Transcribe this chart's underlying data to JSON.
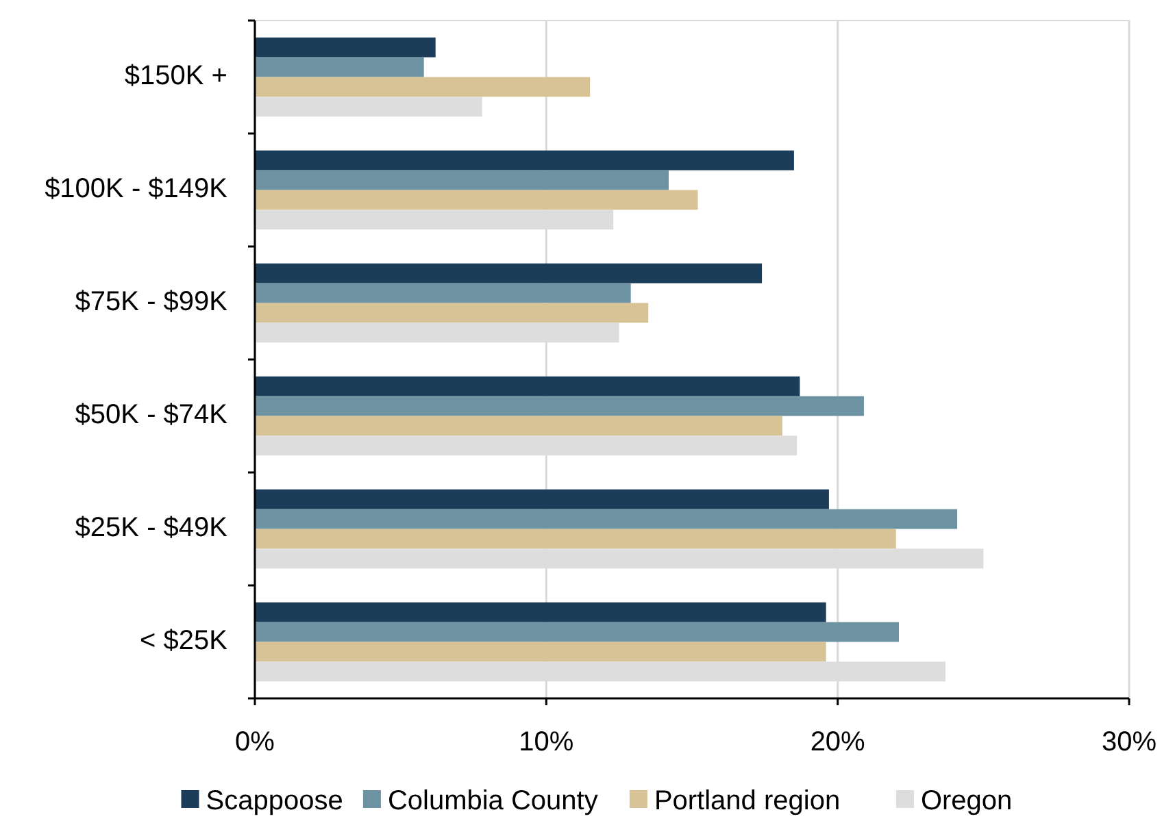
{
  "chart_data": {
    "type": "bar",
    "orientation": "horizontal",
    "categories": [
      "$150K +",
      "$100K - $149K",
      "$75K - $99K",
      "$50K - $74K",
      "$25K - $49K",
      "< $25K"
    ],
    "series": [
      {
        "name": "Scappoose",
        "color": "#1c3d5a",
        "values": [
          6.2,
          18.5,
          17.4,
          18.7,
          19.7,
          19.6
        ]
      },
      {
        "name": "Columbia County",
        "color": "#6d93a3",
        "values": [
          5.8,
          14.2,
          12.9,
          20.9,
          24.1,
          22.1
        ]
      },
      {
        "name": "Portland region",
        "color": "#d8c396",
        "values": [
          11.5,
          15.2,
          13.5,
          18.1,
          22.0,
          19.6
        ]
      },
      {
        "name": "Oregon",
        "color": "#dcdddc",
        "values": [
          7.8,
          12.3,
          12.5,
          18.6,
          25.0,
          23.7
        ]
      }
    ],
    "xlim": [
      0,
      30
    ],
    "xticks": [
      {
        "value": 0,
        "label": "0%"
      },
      {
        "value": 10,
        "label": "10%"
      },
      {
        "value": 20,
        "label": "20%"
      },
      {
        "value": 30,
        "label": "30%"
      }
    ],
    "grid": "x",
    "legend": "bottom"
  }
}
